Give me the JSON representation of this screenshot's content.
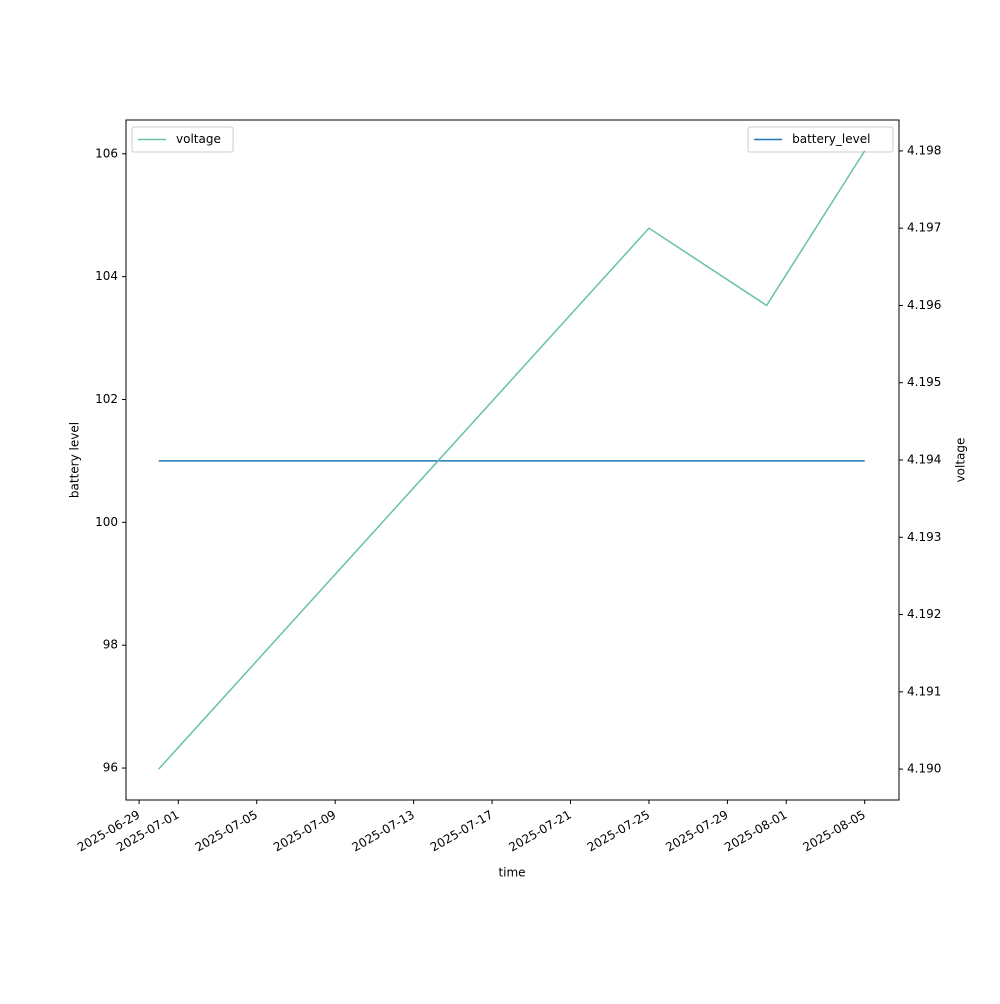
{
  "chart_data": {
    "type": "line",
    "x_label": "time",
    "y_label": "battery level",
    "y2_label": "voltage",
    "x": [
      "2025-06-30",
      "2025-07-25",
      "2025-07-31",
      "2025-08-05"
    ],
    "xlim": [
      "2025-06-28T08:00",
      "2025-08-06T18:00"
    ],
    "xticks": [
      "2025-06-29",
      "2025-07-01",
      "2025-07-05",
      "2025-07-09",
      "2025-07-13",
      "2025-07-17",
      "2025-07-21",
      "2025-07-25",
      "2025-07-29",
      "2025-08-01",
      "2025-08-05"
    ],
    "ylim": [
      95.48,
      106.55
    ],
    "yticks": [
      96,
      98,
      100,
      102,
      104,
      106
    ],
    "y2lim": [
      4.1896,
      4.1984
    ],
    "y2ticks": [
      {
        "value": 4.19,
        "label": "4.190"
      },
      4.191,
      4.192,
      4.193,
      4.194,
      4.195,
      4.196,
      4.197,
      4.198
    ],
    "series": [
      {
        "name": "battery_level",
        "color": "#1f77b4",
        "values": [
          101,
          101,
          101,
          101
        ],
        "legend": "upper right"
      },
      {
        "name": "voltage",
        "color": "#66c2a5",
        "axis": "y2",
        "values": [
          4.19,
          4.197,
          4.196,
          4.198
        ],
        "legend": "upper left"
      }
    ]
  }
}
